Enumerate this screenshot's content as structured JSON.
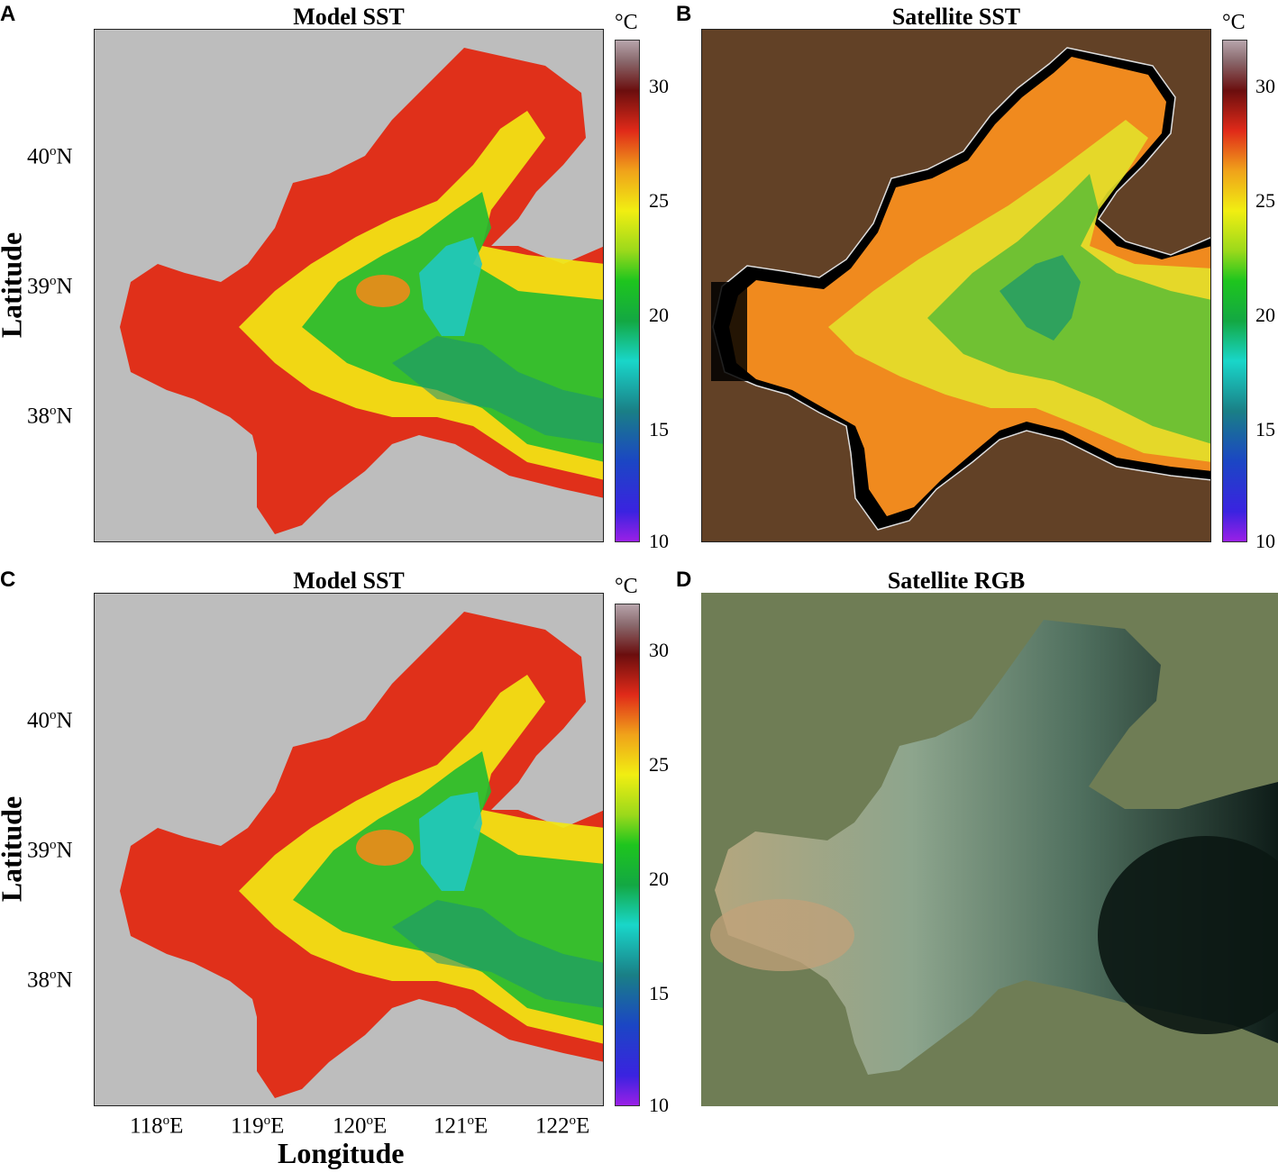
{
  "panels": {
    "a": {
      "letter": "A",
      "title": "Model SST"
    },
    "b": {
      "letter": "B",
      "title": "Satellite SST"
    },
    "c": {
      "letter": "C",
      "title": "Model SST"
    },
    "d": {
      "letter": "D",
      "title": "Satellite RGB"
    }
  },
  "colorbar": {
    "unit": "°C",
    "ticks": [
      "30",
      "25",
      "20",
      "15",
      "10"
    ],
    "range": [
      10,
      32
    ]
  },
  "axes": {
    "ylabel": "Latitude",
    "xlabel": "Longitude",
    "lat_ticks": [
      {
        "deg": "40",
        "sup": "o",
        "hem": "N"
      },
      {
        "deg": "39",
        "sup": "o",
        "hem": "N"
      },
      {
        "deg": "38",
        "sup": "o",
        "hem": "N"
      }
    ],
    "lon_ticks": [
      {
        "deg": "118",
        "sup": "o",
        "hem": "E"
      },
      {
        "deg": "119",
        "sup": "o",
        "hem": "E"
      },
      {
        "deg": "120",
        "sup": "o",
        "hem": "E"
      },
      {
        "deg": "121",
        "sup": "o",
        "hem": "E"
      },
      {
        "deg": "122",
        "sup": "o",
        "hem": "E"
      }
    ]
  },
  "colors": {
    "model_land": "#bdbdbd",
    "satellite_land": "#624126",
    "rgb_land": "#6f7d55",
    "warm_water": "#e0301a",
    "mid_water": "#f2e614",
    "cool_water": "#22bb30",
    "cold_water": "#20c8c0"
  }
}
